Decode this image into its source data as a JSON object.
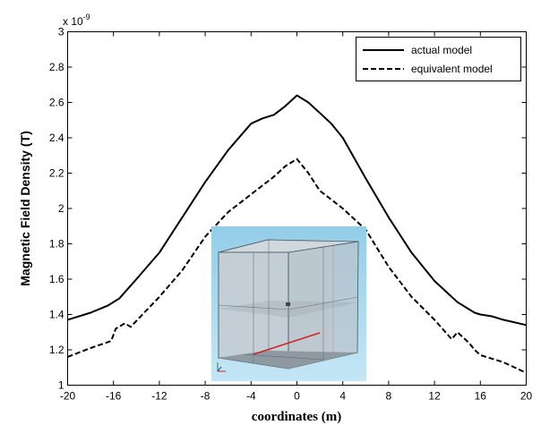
{
  "chart_data": {
    "type": "line",
    "xlabel": "coordinates (m)",
    "ylabel": "Magnetic Field Density (T)",
    "y_multiplier": "x 10",
    "y_multiplier_exponent": "-9",
    "xlim": [
      -20,
      20
    ],
    "ylim": [
      1,
      3
    ],
    "x_ticks": [
      "-20",
      "-16",
      "-12",
      "-8",
      "-4",
      "0",
      "4",
      "8",
      "12",
      "16",
      "20"
    ],
    "y_ticks": [
      "1",
      "1.2",
      "1.4",
      "1.6",
      "1.8",
      "2",
      "2.2",
      "2.4",
      "2.6",
      "2.8",
      "3"
    ],
    "grid": false,
    "legend_position": "top-right",
    "series": [
      {
        "name": "actual model",
        "style": "solid",
        "color": "#000000",
        "x": [
          -20,
          -18,
          -16.5,
          -15.5,
          -14,
          -12,
          -10,
          -8,
          -6,
          -4,
          -3,
          -2,
          -1,
          0,
          1,
          2,
          3,
          4,
          6,
          8,
          10,
          12,
          14,
          15.5,
          16,
          17,
          18,
          20
        ],
        "y": [
          1.37,
          1.41,
          1.45,
          1.49,
          1.6,
          1.75,
          1.95,
          2.15,
          2.33,
          2.48,
          2.51,
          2.53,
          2.58,
          2.64,
          2.6,
          2.54,
          2.48,
          2.4,
          2.17,
          1.95,
          1.75,
          1.59,
          1.47,
          1.41,
          1.4,
          1.39,
          1.37,
          1.34
        ]
      },
      {
        "name": "equivalent model",
        "style": "dashed",
        "color": "#000000",
        "x": [
          -20,
          -18,
          -16.2,
          -15.8,
          -15,
          -14.5,
          -12,
          -10,
          -8,
          -6,
          -4,
          -2,
          -1,
          0,
          1,
          2,
          4,
          6,
          8,
          10,
          12,
          13.5,
          14,
          15,
          15.5,
          16,
          18,
          20
        ],
        "y": [
          1.16,
          1.21,
          1.25,
          1.32,
          1.35,
          1.33,
          1.5,
          1.65,
          1.84,
          1.98,
          2.08,
          2.18,
          2.24,
          2.28,
          2.2,
          2.1,
          2.0,
          1.88,
          1.67,
          1.5,
          1.37,
          1.26,
          1.3,
          1.24,
          1.2,
          1.17,
          1.13,
          1.07
        ]
      }
    ]
  },
  "colors": {
    "inset_sky_top": "#93cde8",
    "inset_sky_bottom": "#c4e6f5",
    "inset_box_face": "#b9c4cc",
    "inset_floor": "#8f99a2",
    "inset_red_line": "#d42020"
  },
  "inset": {
    "icon": "3d-cube-model-image"
  }
}
